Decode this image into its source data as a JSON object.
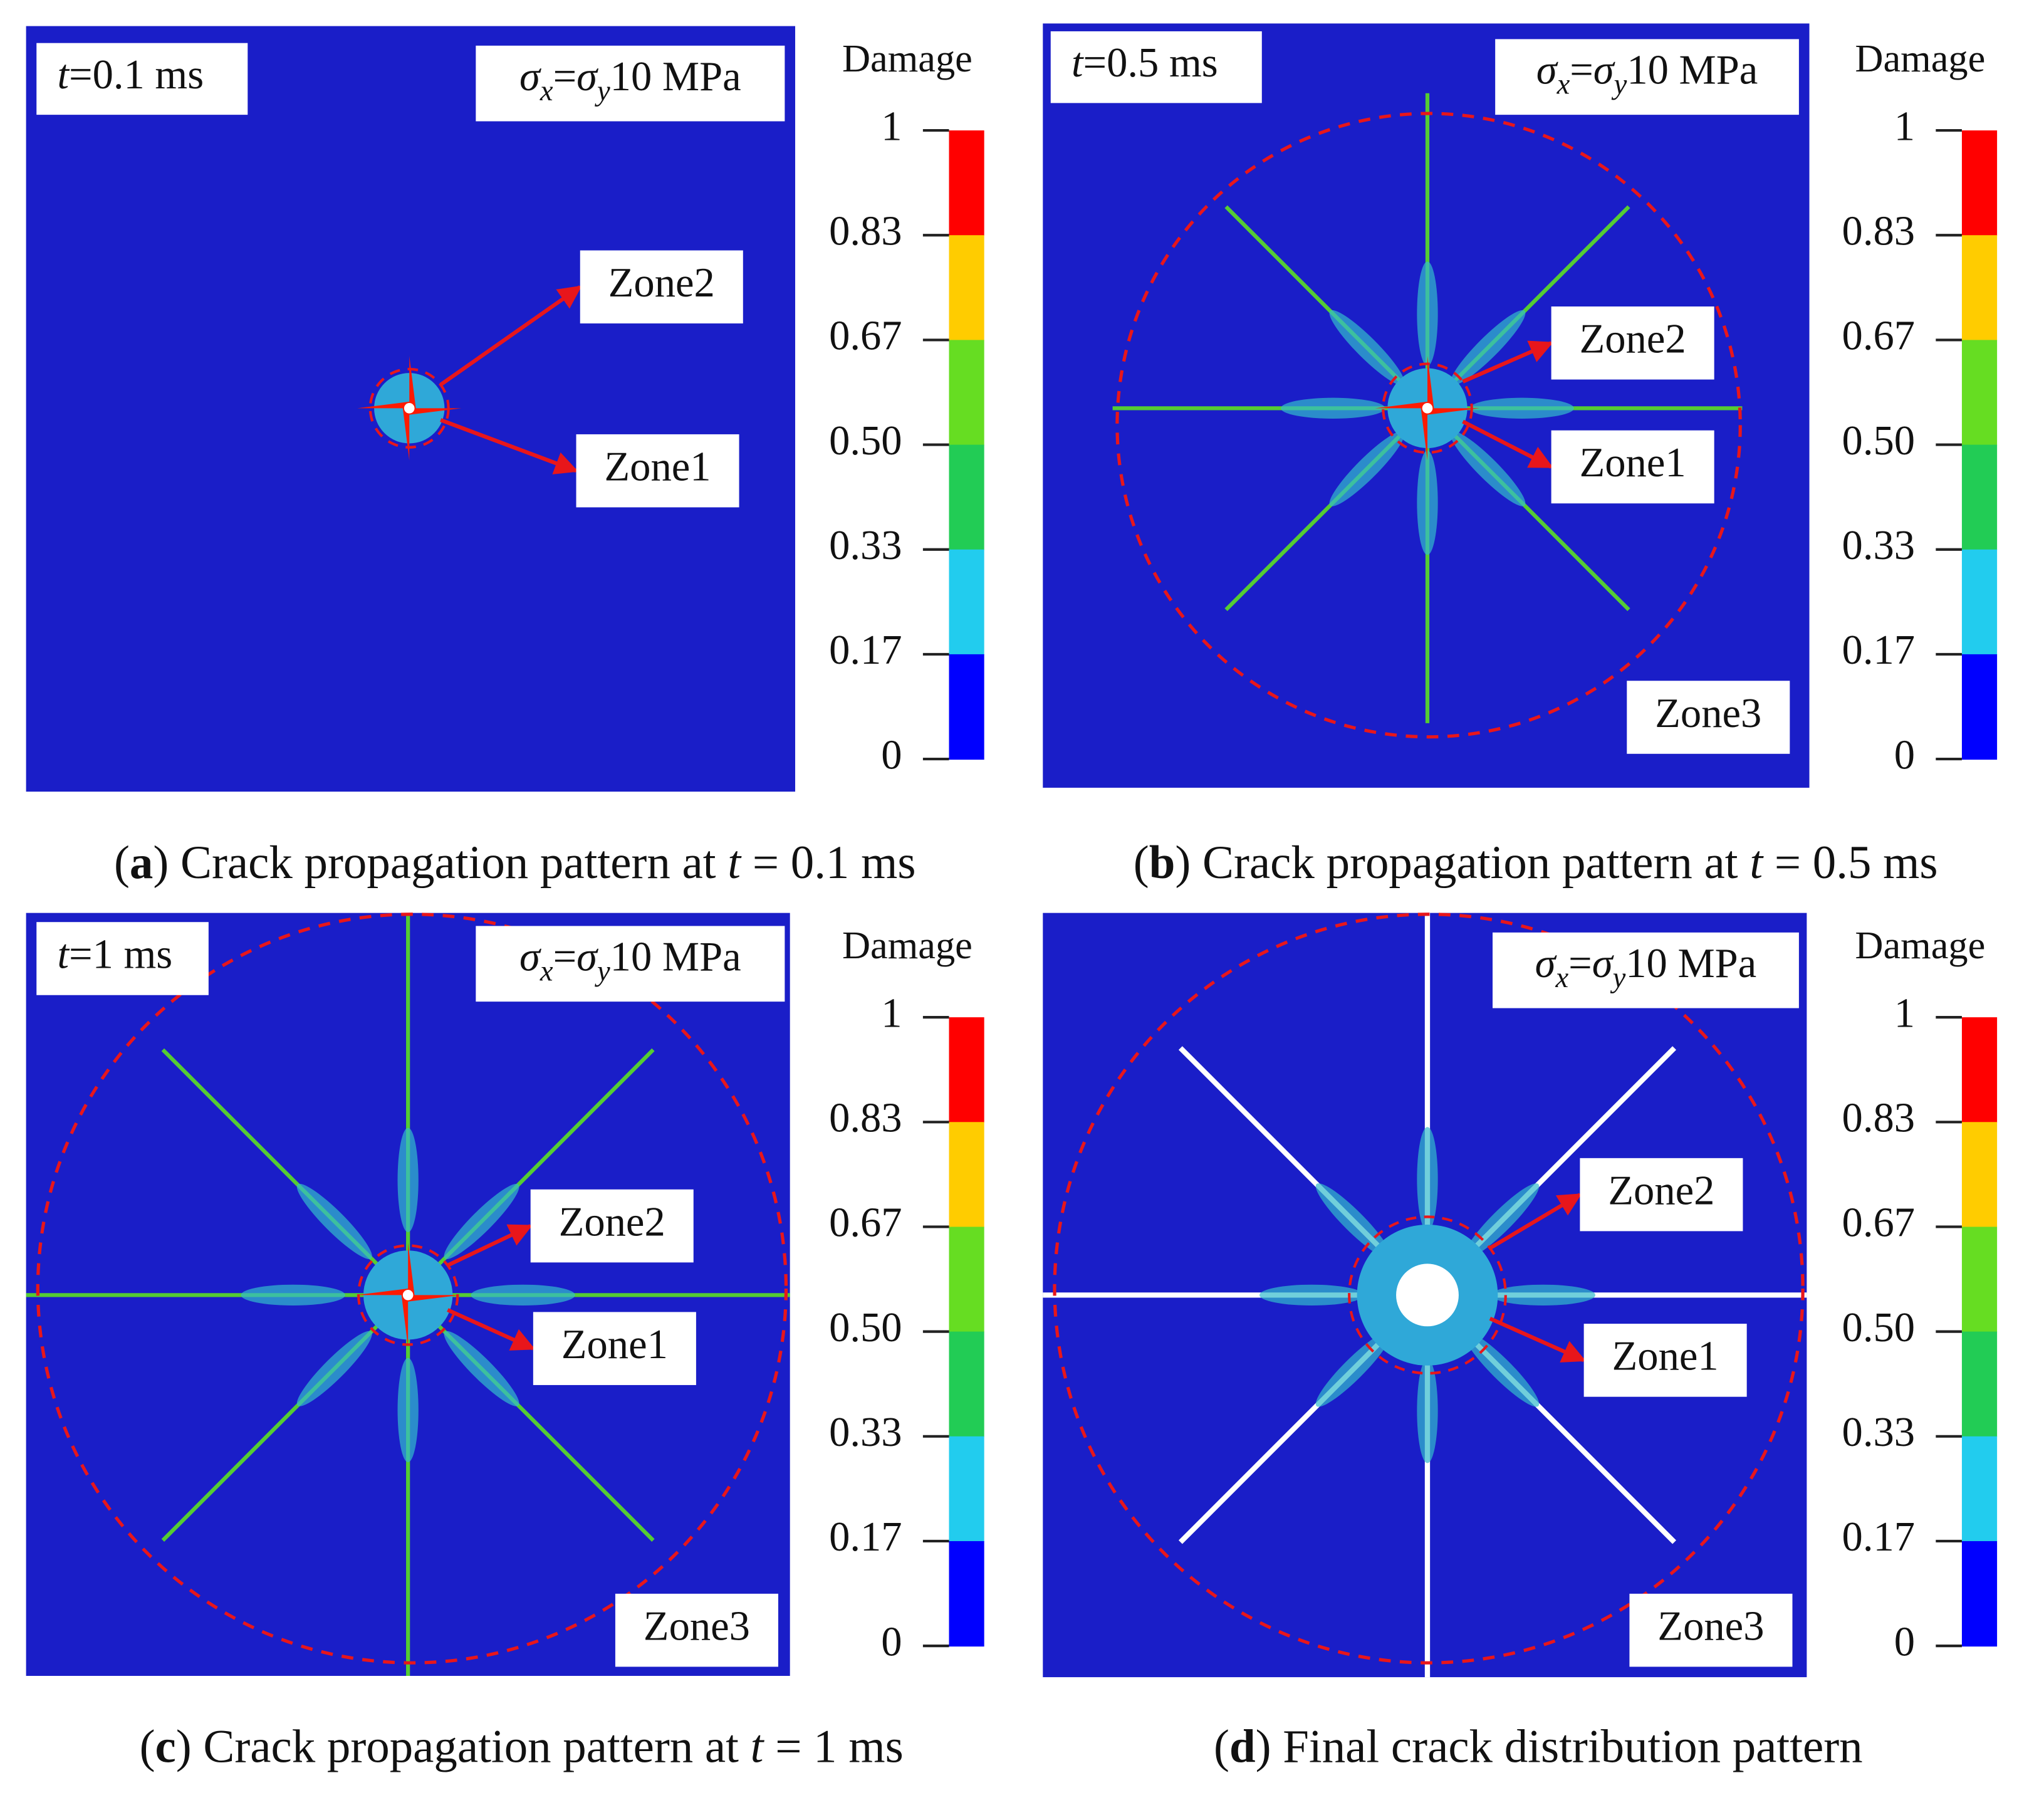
{
  "panels": [
    {
      "time_label": [
        {
          "text": "t",
          "style": "italic"
        },
        {
          "text": "=0.1 ms",
          "style": "normal"
        }
      ],
      "stress_label": [
        {
          "text": "σ",
          "style": "italic"
        },
        {
          "text": "x",
          "style": "italic-sub"
        },
        {
          "text": "=",
          "style": "normal"
        },
        {
          "text": "σ",
          "style": "italic"
        },
        {
          "text": "y",
          "style": "italic-sub"
        },
        {
          "text": "10 MPa",
          "style": "normal"
        }
      ],
      "zones": [
        "Zone2",
        "Zone1"
      ],
      "colorbar": {
        "title": "Damage",
        "ticks": [
          "1",
          "0.83",
          "0.67",
          "0.50",
          "0.33",
          "0.17",
          "0"
        ],
        "colors": [
          "#ff0000",
          "#ffcc00",
          "#66dd22",
          "#22cc55",
          "#22ccee",
          "#0000ff"
        ]
      },
      "caption": [
        {
          "text": "(",
          "style": "normal"
        },
        {
          "text": "a",
          "style": "bold"
        },
        {
          "text": ") Crack propagation pattern at ",
          "style": "normal"
        },
        {
          "text": "t",
          "style": "italic"
        },
        {
          "text": " = 0.1 ms",
          "style": "normal"
        }
      ]
    },
    {
      "time_label": [
        {
          "text": "t",
          "style": "italic"
        },
        {
          "text": "=0.5 ms",
          "style": "normal"
        }
      ],
      "stress_label": [
        {
          "text": "σ",
          "style": "italic"
        },
        {
          "text": "x",
          "style": "italic-sub"
        },
        {
          "text": "=",
          "style": "normal"
        },
        {
          "text": "σ",
          "style": "italic"
        },
        {
          "text": "y",
          "style": "italic-sub"
        },
        {
          "text": "10 MPa",
          "style": "normal"
        }
      ],
      "zones": [
        "Zone2",
        "Zone1",
        "Zone3"
      ],
      "colorbar": {
        "title": "Damage",
        "ticks": [
          "1",
          "0.83",
          "0.67",
          "0.50",
          "0.33",
          "0.17",
          "0"
        ],
        "colors": [
          "#ff0000",
          "#ffcc00",
          "#66dd22",
          "#22cc55",
          "#22ccee",
          "#0000ff"
        ]
      },
      "caption": [
        {
          "text": "(",
          "style": "normal"
        },
        {
          "text": "b",
          "style": "bold"
        },
        {
          "text": ") Crack propagation pattern at ",
          "style": "normal"
        },
        {
          "text": "t",
          "style": "italic"
        },
        {
          "text": " = 0.5 ms",
          "style": "normal"
        }
      ]
    },
    {
      "time_label": [
        {
          "text": "t",
          "style": "italic"
        },
        {
          "text": "=1 ms",
          "style": "normal"
        }
      ],
      "stress_label": [
        {
          "text": "σ",
          "style": "italic"
        },
        {
          "text": "x",
          "style": "italic-sub"
        },
        {
          "text": "=",
          "style": "normal"
        },
        {
          "text": "σ",
          "style": "italic"
        },
        {
          "text": "y",
          "style": "italic-sub"
        },
        {
          "text": "10 MPa",
          "style": "normal"
        }
      ],
      "zones": [
        "Zone2",
        "Zone1",
        "Zone3"
      ],
      "colorbar": {
        "title": "Damage",
        "ticks": [
          "1",
          "0.83",
          "0.67",
          "0.50",
          "0.33",
          "0.17",
          "0"
        ],
        "colors": [
          "#ff0000",
          "#ffcc00",
          "#66dd22",
          "#22cc55",
          "#22ccee",
          "#0000ff"
        ]
      },
      "caption": [
        {
          "text": "(",
          "style": "normal"
        },
        {
          "text": "c",
          "style": "bold"
        },
        {
          "text": ") Crack propagation pattern at ",
          "style": "normal"
        },
        {
          "text": "t",
          "style": "italic"
        },
        {
          "text": " = 1 ms",
          "style": "normal"
        }
      ]
    },
    {
      "stress_label": [
        {
          "text": "σ",
          "style": "italic"
        },
        {
          "text": "x",
          "style": "italic-sub"
        },
        {
          "text": "=",
          "style": "normal"
        },
        {
          "text": "σ",
          "style": "italic"
        },
        {
          "text": "y",
          "style": "italic-sub"
        },
        {
          "text": "10 MPa",
          "style": "normal"
        }
      ],
      "zones": [
        "Zone2",
        "Zone1",
        "Zone3"
      ],
      "colorbar": {
        "title": "Damage",
        "ticks": [
          "1",
          "0.83",
          "0.67",
          "0.50",
          "0.33",
          "0.17",
          "0"
        ],
        "colors": [
          "#ff0000",
          "#ffcc00",
          "#66dd22",
          "#22cc55",
          "#22ccee",
          "#0000ff"
        ]
      },
      "caption": [
        {
          "text": "(",
          "style": "normal"
        },
        {
          "text": "d",
          "style": "bold"
        },
        {
          "text": ") Final crack distribution pattern",
          "style": "normal"
        }
      ]
    }
  ]
}
